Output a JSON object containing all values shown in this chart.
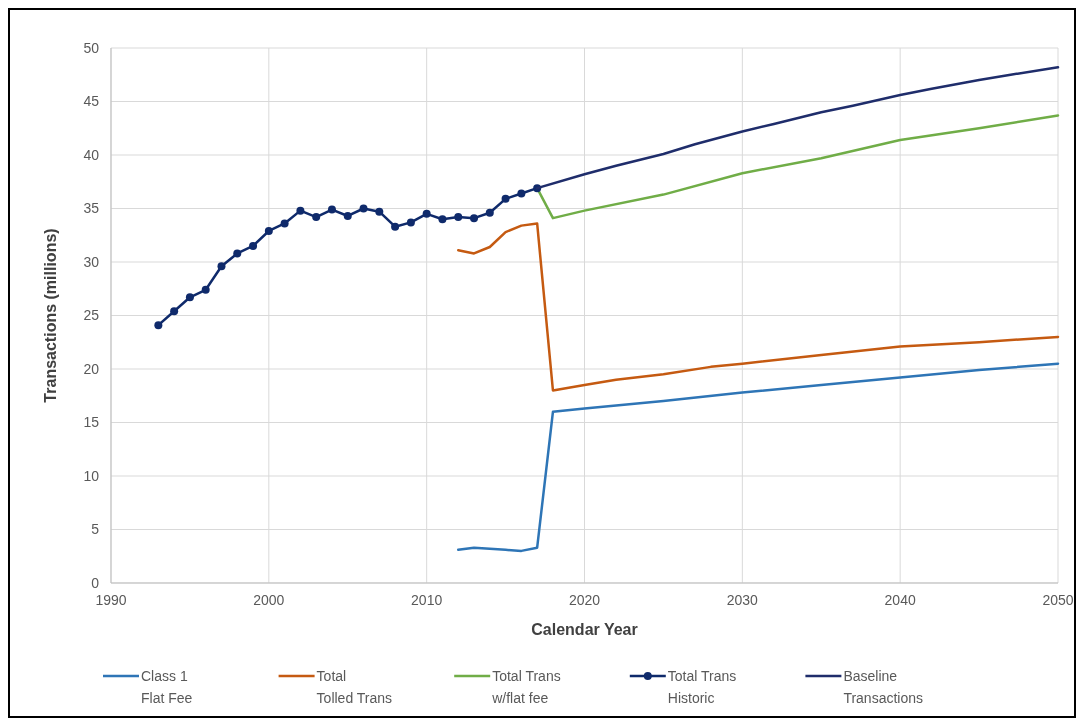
{
  "chart_data": {
    "type": "line",
    "xlabel": "Calendar Year",
    "ylabel": "Transactions (millions)",
    "xlim": [
      1990,
      2050
    ],
    "xticks": [
      1990,
      2000,
      2010,
      2020,
      2030,
      2040,
      2050
    ],
    "ylim": [
      0,
      50
    ],
    "yticks": [
      0,
      5,
      10,
      15,
      20,
      25,
      30,
      35,
      40,
      45,
      50
    ],
    "grid": true,
    "legend": "bottom",
    "series": [
      {
        "name": "Class 1\nFlat Fee",
        "color": "#2e75b6",
        "marker": "none",
        "x": [
          2012,
          2013,
          2014,
          2015,
          2016,
          2017,
          2018,
          2020,
          2025,
          2030,
          2035,
          2040,
          2045,
          2050
        ],
        "values": [
          3.1,
          3.3,
          3.2,
          3.1,
          3.0,
          3.3,
          16.0,
          16.3,
          17.0,
          17.8,
          18.5,
          19.2,
          19.9,
          20.5
        ]
      },
      {
        "name": "Total\nTolled Trans",
        "color": "#c55a11",
        "marker": "none",
        "x": [
          2012,
          2013,
          2014,
          2015,
          2016,
          2017,
          2018,
          2020,
          2022,
          2025,
          2028,
          2030,
          2035,
          2040,
          2045,
          2050
        ],
        "values": [
          31.1,
          30.8,
          31.4,
          32.8,
          33.4,
          33.6,
          18.0,
          18.5,
          19.0,
          19.5,
          20.2,
          20.5,
          21.3,
          22.1,
          22.5,
          23.0
        ]
      },
      {
        "name": "Total Trans\nw/flat fee",
        "color": "#70ad47",
        "marker": "none",
        "x": [
          2017,
          2018,
          2020,
          2025,
          2030,
          2035,
          2040,
          2045,
          2050
        ],
        "values": [
          36.9,
          34.1,
          34.8,
          36.3,
          38.3,
          39.7,
          41.4,
          42.5,
          43.7
        ]
      },
      {
        "name": "Total Trans\nHistoric",
        "color": "#0f2a6b",
        "marker": "circle",
        "x": [
          1993,
          1994,
          1995,
          1996,
          1997,
          1998,
          1999,
          2000,
          2001,
          2002,
          2003,
          2004,
          2005,
          2006,
          2007,
          2008,
          2009,
          2010,
          2011,
          2012,
          2013,
          2014,
          2015,
          2016,
          2017
        ],
        "values": [
          24.1,
          25.4,
          26.7,
          27.4,
          29.6,
          30.8,
          31.5,
          32.9,
          33.6,
          34.8,
          34.2,
          34.9,
          34.3,
          35.0,
          34.7,
          33.3,
          33.7,
          34.5,
          34.0,
          34.2,
          34.1,
          34.6,
          35.9,
          36.4,
          36.9
        ]
      },
      {
        "name": "Baseline\nTransactions",
        "color": "#1f2d6b",
        "marker": "none",
        "x": [
          2017,
          2020,
          2022,
          2025,
          2027,
          2030,
          2032,
          2035,
          2037,
          2040,
          2042,
          2045,
          2047,
          2050
        ],
        "values": [
          36.9,
          38.2,
          39.0,
          40.1,
          41.0,
          42.2,
          42.9,
          44.0,
          44.6,
          45.6,
          46.2,
          47.0,
          47.5,
          48.2
        ]
      }
    ]
  }
}
